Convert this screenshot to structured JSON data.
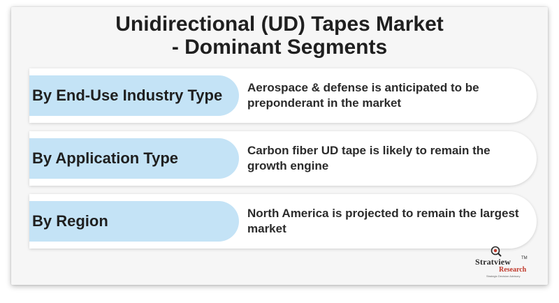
{
  "title": {
    "line1": "Unidirectional (UD) Tapes Market",
    "line2": "- Dominant Segments"
  },
  "segments": [
    {
      "label": "By End-Use Industry Type",
      "description": "Aerospace & defense is anticipated to be preponderant in the market"
    },
    {
      "label": "By Application Type",
      "description": "Carbon fiber UD tape is likely to remain the growth engine"
    },
    {
      "label": "By Region",
      "description": "North America is projected to remain the largest market"
    }
  ],
  "logo": {
    "name": "Stratview",
    "tm": "TM",
    "sub": "Research",
    "tagline": "Strategic Decision Advisory",
    "icon": "magnifier-target-icon",
    "accent_color": "#c0392b"
  },
  "colors": {
    "label_bg": "#c4e3f6",
    "card_bg": "#f6f6f6",
    "text": "#1f1f1f"
  }
}
